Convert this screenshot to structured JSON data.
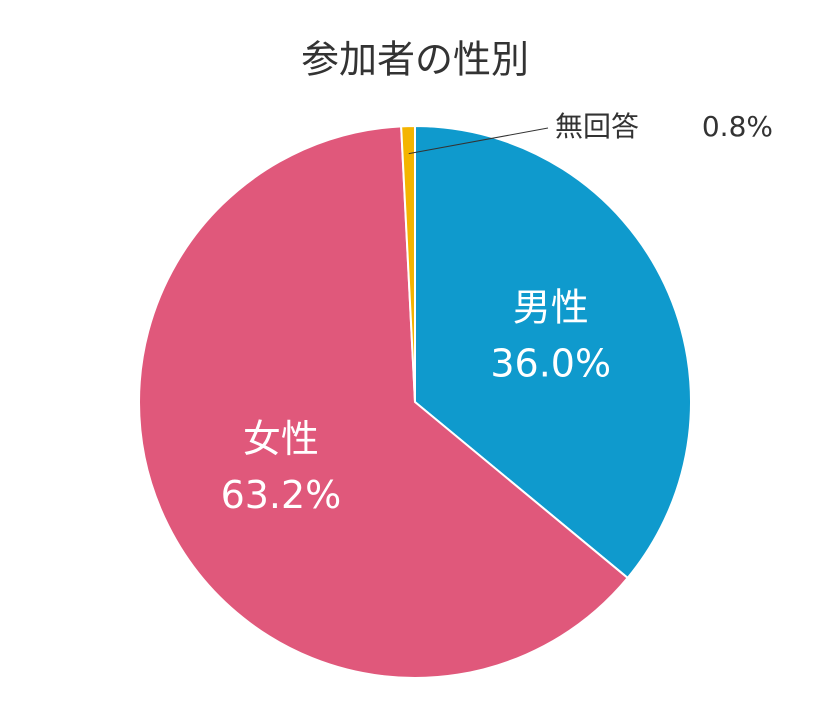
{
  "chart_data": {
    "type": "pie",
    "title": "参加者の性別",
    "categories": [
      "男性",
      "女性",
      "無回答"
    ],
    "values": [
      36.0,
      63.2,
      0.8
    ],
    "value_labels": [
      "36.0%",
      "63.2%",
      "0.8%"
    ],
    "colors": [
      "#0f9acd",
      "#e0587b",
      "#f4b400"
    ]
  }
}
